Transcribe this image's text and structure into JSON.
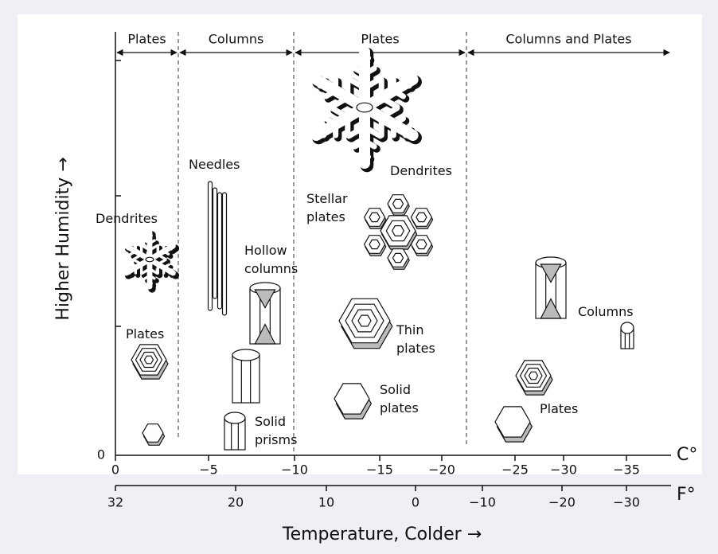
{
  "regions": [
    "Plates",
    "Columns",
    "Plates",
    "Columns and Plates"
  ],
  "y_axis": {
    "label": "Higher Humidity →",
    "tick_label": "0"
  },
  "x_axis": {
    "label": "Temperature, Colder →",
    "celsius_unit": "C°",
    "fahrenheit_unit": "F°",
    "celsius_ticks": [
      {
        "value": 0,
        "label": "0"
      },
      {
        "value": -5,
        "label": "−5"
      },
      {
        "value": -10,
        "label": "−10"
      },
      {
        "value": -15,
        "label": "−15"
      },
      {
        "value": -20,
        "label": "−20"
      },
      {
        "value": -25,
        "label": "−25"
      },
      {
        "value": -30,
        "label": "−30"
      },
      {
        "value": -35,
        "label": "−35"
      }
    ],
    "fahrenheit_ticks": [
      {
        "value": 32,
        "label": "32"
      },
      {
        "value": 20,
        "label": "20"
      },
      {
        "value": 10,
        "label": "10"
      },
      {
        "value": 0,
        "label": "0"
      },
      {
        "value": -10,
        "label": "−10"
      },
      {
        "value": -20,
        "label": "−20"
      },
      {
        "value": -30,
        "label": "−30"
      }
    ]
  },
  "labels": [
    [
      "Dendrites"
    ],
    [
      "Plates"
    ],
    [
      "Needles"
    ],
    [
      "Hollow",
      "columns"
    ],
    [
      "Solid",
      "prisms"
    ],
    [
      "Dendrites"
    ],
    [
      "Stellar",
      "plates"
    ],
    [
      "Thin",
      "plates"
    ],
    [
      "Solid",
      "plates"
    ],
    [
      "Columns"
    ],
    [
      "Plates"
    ]
  ]
}
